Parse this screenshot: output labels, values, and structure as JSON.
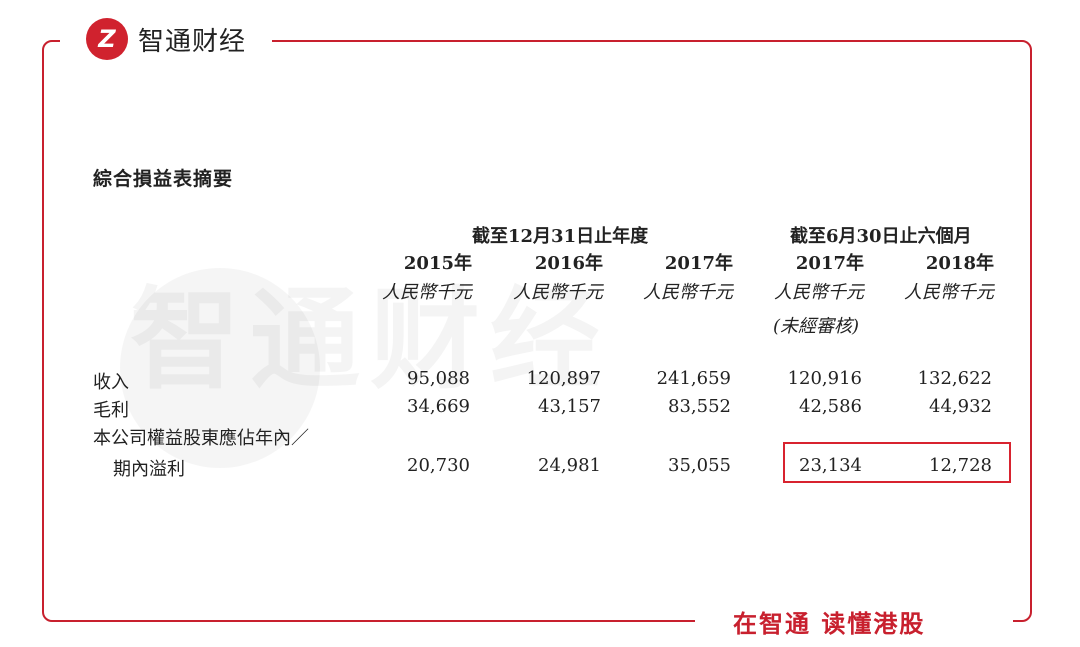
{
  "brand": {
    "logo_text": "智通财经",
    "logo_mark": "Z",
    "slogan": "在智通  读懂港股",
    "accent": "#c8202e",
    "watermark": "智通财经"
  },
  "title": "綜合損益表摘要",
  "groups": [
    "截至12月31日止年度",
    "截至6月30日止六個月"
  ],
  "columns": [
    {
      "year": "2015年",
      "unit": "人民幣千元"
    },
    {
      "year": "2016年",
      "unit": "人民幣千元"
    },
    {
      "year": "2017年",
      "unit": "人民幣千元"
    },
    {
      "year": "2017年",
      "unit": "人民幣千元",
      "note": "(未經審核)"
    },
    {
      "year": "2018年",
      "unit": "人民幣千元"
    }
  ],
  "rows": [
    {
      "label": "收入",
      "values": [
        "95,088",
        "120,897",
        "241,659",
        "120,916",
        "132,622"
      ]
    },
    {
      "label": "毛利",
      "values": [
        "34,669",
        "43,157",
        "83,552",
        "42,586",
        "44,932"
      ]
    },
    {
      "label": "本公司權益股東應佔年內／",
      "label2": "期內溢利",
      "values": [
        "20,730",
        "24,981",
        "35,055",
        "23,134",
        "12,728"
      ],
      "highlighted": [
        "23,134",
        "12,728"
      ]
    }
  ]
}
